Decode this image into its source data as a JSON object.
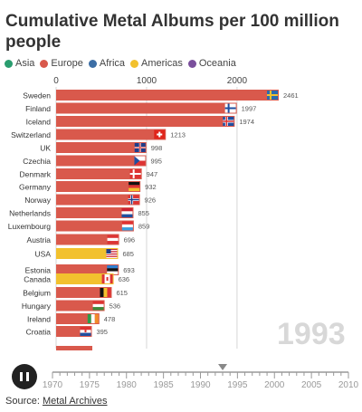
{
  "title": "Cumulative Metal Albums per 100 million people",
  "legend": [
    {
      "label": "Asia",
      "color": "#2a9d6f"
    },
    {
      "label": "Europe",
      "color": "#d9594c"
    },
    {
      "label": "Africa",
      "color": "#3c6ea5"
    },
    {
      "label": "Americas",
      "color": "#f2c12e"
    },
    {
      "label": "Oceania",
      "color": "#7a4f9c"
    }
  ],
  "year": "1993",
  "controls": {
    "play_state": "pause-icon"
  },
  "source": {
    "prefix": "Source: ",
    "link": "Metal Archives"
  },
  "chart_data": {
    "type": "bar",
    "orientation": "horizontal",
    "title": "Cumulative Metal Albums per 100 million people",
    "xlim": [
      0,
      2461
    ],
    "x_ticks": [
      0,
      1000,
      2000
    ],
    "grid": true,
    "categories": [
      "Sweden",
      "Finland",
      "Iceland",
      "Switzerland",
      "UK",
      "Czechia",
      "Denmark",
      "Germany",
      "Norway",
      "Netherlands",
      "Luxembourg",
      "Austria",
      "USA",
      "Estonia",
      "Canada",
      "Belgium",
      "Hungary",
      "Ireland",
      "Croatia"
    ],
    "values": [
      2461,
      1997,
      1974,
      1213,
      998,
      995,
      947,
      932,
      926,
      855,
      859,
      696,
      685,
      693,
      636,
      615,
      536,
      478,
      395
    ],
    "regions": [
      "Europe",
      "Europe",
      "Europe",
      "Europe",
      "Europe",
      "Europe",
      "Europe",
      "Europe",
      "Europe",
      "Europe",
      "Europe",
      "Europe",
      "Americas",
      "Europe",
      "Americas",
      "Europe",
      "Europe",
      "Europe",
      "Europe"
    ],
    "flags": [
      "se",
      "fi",
      "is",
      "ch",
      "uk",
      "cz",
      "dk",
      "de",
      "no",
      "nl",
      "lu",
      "at",
      "us",
      "ee",
      "ca",
      "be",
      "hu",
      "ie",
      "hr"
    ],
    "timeline": {
      "range": [
        1970,
        2010
      ],
      "ticks": [
        "1970",
        "1975",
        "1980",
        "1985",
        "1990",
        "1995",
        "2000",
        "2005",
        "2010"
      ],
      "current": 1993
    }
  }
}
